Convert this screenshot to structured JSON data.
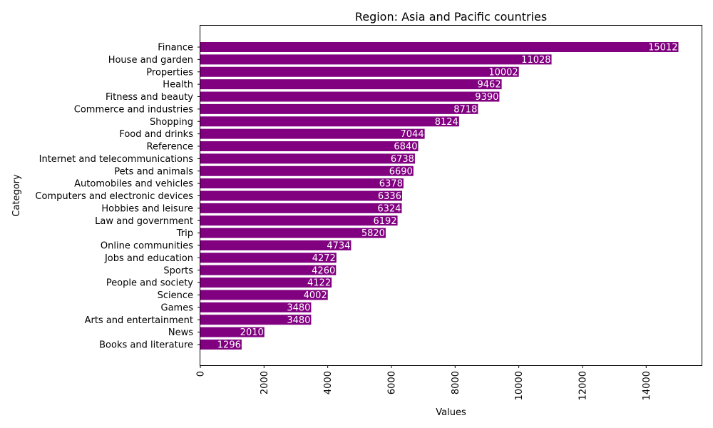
{
  "chart_data": {
    "type": "bar",
    "orientation": "horizontal",
    "title": "Region: Asia and Pacific countries",
    "xlabel": "Values",
    "ylabel": "Category",
    "xlim": [
      0,
      15762.6
    ],
    "xticks": [
      0,
      2000,
      4000,
      6000,
      8000,
      10000,
      12000,
      14000
    ],
    "grid": false,
    "legend": "none",
    "bar_color": "#800080",
    "value_label_color": "#ffffff",
    "categories": [
      "Finance",
      "House and garden",
      "Properties",
      "Health",
      "Fitness and beauty",
      "Commerce and industries",
      "Shopping",
      "Food and drinks",
      "Reference",
      "Internet and telecommunications",
      "Pets and animals",
      "Automobiles and vehicles",
      "Computers and electronic devices",
      "Hobbies and leisure",
      "Law and government",
      "Trip",
      "Online communities",
      "Jobs and education",
      "Sports",
      "People and society",
      "Science",
      "Games",
      "Arts and entertainment",
      "News",
      "Books and literature"
    ],
    "values": [
      15012,
      11028,
      10002,
      9462,
      9390,
      8718,
      8124,
      7044,
      6840,
      6738,
      6690,
      6378,
      6336,
      6324,
      6192,
      5820,
      4734,
      4272,
      4260,
      4122,
      4002,
      3480,
      3480,
      2010,
      1296
    ]
  }
}
